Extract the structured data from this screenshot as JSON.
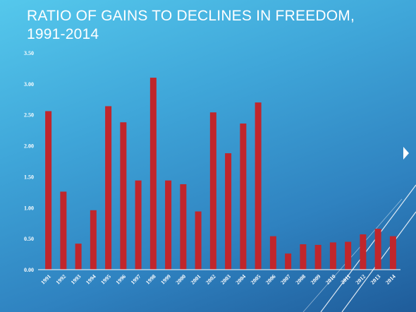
{
  "slide": {
    "title": "RATIO OF GAINS TO DECLINES IN FREEDOM, 1991-2014"
  },
  "colors": {
    "bar": "#c0262c",
    "axis": "#ffffff",
    "text": "#ffffff"
  },
  "chart_data": {
    "type": "bar",
    "title": "RATIO OF GAINS TO DECLINES IN FREEDOM, 1991-2014",
    "xlabel": "",
    "ylabel": "",
    "ylim": [
      0,
      3.5
    ],
    "yticks": [
      "0.00",
      "0.50",
      "1.00",
      "1.50",
      "2.00",
      "2.50",
      "3.00",
      "3.50"
    ],
    "grid": false,
    "categories": [
      "1991",
      "1992",
      "1993",
      "1994",
      "1995",
      "1996",
      "1997",
      "1998",
      "1999",
      "2000",
      "2001",
      "2002",
      "2003",
      "2004",
      "2005",
      "2006",
      "2007",
      "2008",
      "2009",
      "2010",
      "2011",
      "2012",
      "2013",
      "2014"
    ],
    "series": [
      {
        "values": [
          2.56,
          1.26,
          0.42,
          0.96,
          2.64,
          2.38,
          1.44,
          3.1,
          1.44,
          1.38,
          0.94,
          2.54,
          1.88,
          2.36,
          2.7,
          0.54,
          0.26,
          0.41,
          0.4,
          0.44,
          0.45,
          0.57,
          0.66,
          0.54
        ]
      }
    ]
  }
}
